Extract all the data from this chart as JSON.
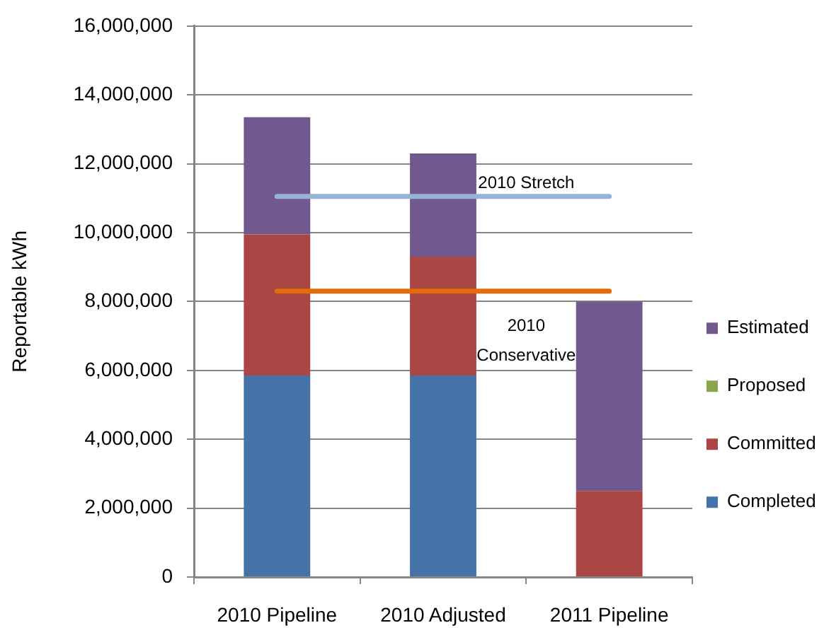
{
  "chart_data": {
    "type": "bar",
    "stacked": true,
    "categories": [
      "2010 Pipeline",
      "2010 Adjusted",
      "2011 Pipeline"
    ],
    "series": [
      {
        "name": "Completed",
        "color": "#4572a7",
        "values": [
          5850000,
          5850000,
          0
        ]
      },
      {
        "name": "Committed",
        "color": "#aa4643",
        "values": [
          4100000,
          3450000,
          2500000
        ]
      },
      {
        "name": "Proposed",
        "color": "#89a54e",
        "values": [
          0,
          0,
          0
        ]
      },
      {
        "name": "Estimated",
        "color": "#71588f",
        "values": [
          3400000,
          3000000,
          5500000
        ]
      }
    ],
    "ylabel": "Reportable kWh",
    "ylim": [
      0,
      16000000
    ],
    "yticks": [
      {
        "value": 0,
        "label": "0"
      },
      {
        "value": 2000000,
        "label": "2,000,000"
      },
      {
        "value": 4000000,
        "label": "4,000,000"
      },
      {
        "value": 6000000,
        "label": "6,000,000"
      },
      {
        "value": 8000000,
        "label": "8,000,000"
      },
      {
        "value": 10000000,
        "label": "10,000,000"
      },
      {
        "value": 12000000,
        "label": "12,000,000"
      },
      {
        "value": 14000000,
        "label": "14,000,000"
      },
      {
        "value": 16000000,
        "label": "16,000,000"
      }
    ],
    "grid": "y",
    "legend": "right",
    "ref_lines": [
      {
        "axis": "y",
        "value": 11050000,
        "label": "2010 Stretch",
        "color": "#95b3d7"
      },
      {
        "axis": "y",
        "value": 8300000,
        "label": "2010 Conservative",
        "color": "#e46c0a"
      }
    ]
  }
}
